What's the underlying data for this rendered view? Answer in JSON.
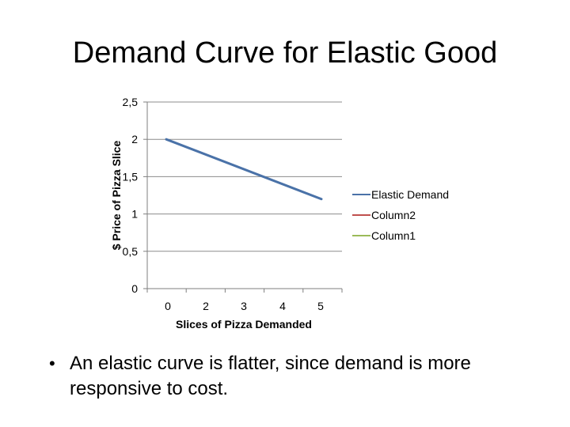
{
  "slide": {
    "title": "Demand Curve for Elastic Good",
    "bullet_symbol": "•",
    "bullet_text": "An elastic curve is flatter, since demand is more responsive to cost."
  },
  "chart_data": {
    "type": "line",
    "xlabel": "Slices of Pizza Demanded",
    "ylabel": "$ Price of  Pizza Slice",
    "y_ticks": [
      {
        "value": 0,
        "label": "0"
      },
      {
        "value": 0.5,
        "label": "0,5"
      },
      {
        "value": 1,
        "label": "1"
      },
      {
        "value": 1.5,
        "label": "1,5"
      },
      {
        "value": 2,
        "label": "2"
      },
      {
        "value": 2.5,
        "label": "2,5"
      }
    ],
    "x_tick_labels": [
      "0",
      "2",
      "3",
      "4",
      "5"
    ],
    "ylim": [
      0,
      2.5
    ],
    "grid": "horizontal",
    "legend_position": "right",
    "series": [
      {
        "name": "Elastic Demand",
        "color": "#4a72a8",
        "x": [
          0,
          5
        ],
        "y": [
          2,
          1.2
        ]
      },
      {
        "name": "Column2",
        "color": "#c0504d",
        "x": [],
        "y": []
      },
      {
        "name": "Column1",
        "color": "#9bbb59",
        "x": [],
        "y": []
      }
    ]
  }
}
